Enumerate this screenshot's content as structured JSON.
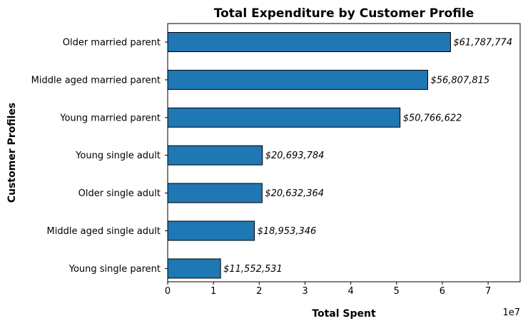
{
  "chart_data": {
    "type": "bar",
    "orientation": "horizontal",
    "title": "Total Expenditure by Customer Profile",
    "xlabel": "Total Spent",
    "ylabel": "Customer Profiles",
    "x_offset_label": "1e7",
    "x_tick_labels": [
      "0",
      "1",
      "2",
      "3",
      "4",
      "5",
      "6",
      "7"
    ],
    "x_scale": 10000000,
    "xlim": [
      0,
      77000000
    ],
    "categories": [
      "Older married parent",
      "Middle aged married parent",
      "Young married parent",
      "Young single adult",
      "Older single adult",
      "Middle aged single adult",
      "Young single parent"
    ],
    "values": [
      61787774,
      56807815,
      50766622,
      20693784,
      20632364,
      18953346,
      11552531
    ],
    "data_labels": [
      "$61,787,774",
      "$56,807,815",
      "$50,766,622",
      "$20,693,784",
      "$20,632,364",
      "$18,953,346",
      "$11,552,531"
    ],
    "bar_color": "#1f77b4",
    "edge_color": "#000000",
    "grid": false,
    "legend": "none"
  }
}
